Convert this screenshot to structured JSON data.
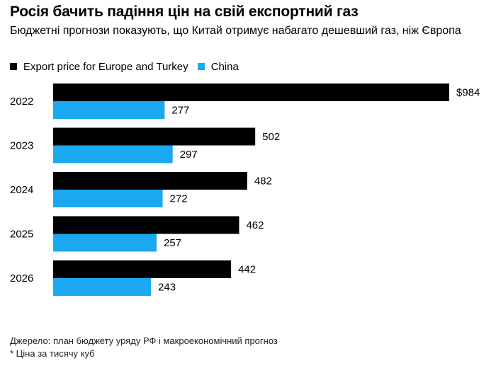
{
  "header": {
    "title": "Росія бачить падіння цін на свій експортний газ",
    "subtitle": "Бюджетні прогнози показують, що Китай отримує набагато дешевший газ, ніж Європа"
  },
  "legend": [
    {
      "label": "Export price for Europe and Turkey",
      "color": "#000000"
    },
    {
      "label": "China",
      "color": "#1aa8f0"
    }
  ],
  "chart_data": {
    "type": "bar",
    "orientation": "horizontal",
    "categories": [
      "2022",
      "2023",
      "2024",
      "2025",
      "2026"
    ],
    "series": [
      {
        "name": "Export price for Europe and Turkey",
        "color": "#000000",
        "values": [
          984,
          502,
          482,
          462,
          442
        ],
        "labels": [
          "$984",
          "502",
          "482",
          "462",
          "442"
        ]
      },
      {
        "name": "China",
        "color": "#1aa8f0",
        "values": [
          277,
          297,
          272,
          257,
          243
        ],
        "labels": [
          "277",
          "297",
          "272",
          "257",
          "243"
        ]
      }
    ],
    "xlim": [
      0,
      984
    ],
    "grid": false,
    "legend_position": "top-left"
  },
  "footer": {
    "source": "Джерело: план бюджету уряду РФ і макроекономічний прогноз",
    "note": "* Ціна за тисячу куб"
  }
}
